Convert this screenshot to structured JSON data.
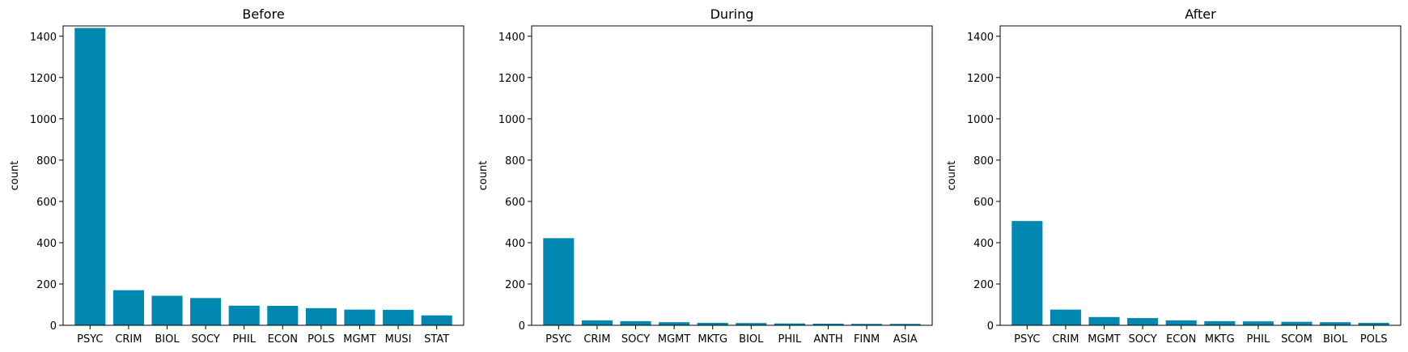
{
  "chart_data": [
    {
      "type": "bar",
      "title": "Before",
      "xlabel": "",
      "ylabel": "count",
      "ylim": [
        0,
        1450
      ],
      "yticks": [
        0,
        200,
        400,
        600,
        800,
        1000,
        1200,
        1400
      ],
      "grid": false,
      "categories": [
        "PSYC",
        "CRIM",
        "BIOL",
        "SOCY",
        "PHIL",
        "ECON",
        "POLS",
        "MGMT",
        "MUSI",
        "STAT"
      ],
      "values": [
        1440,
        170,
        143,
        132,
        95,
        94,
        83,
        76,
        75,
        48
      ],
      "color": "#0088b0"
    },
    {
      "type": "bar",
      "title": "During",
      "xlabel": "",
      "ylabel": "count",
      "ylim": [
        0,
        1450
      ],
      "yticks": [
        0,
        200,
        400,
        600,
        800,
        1000,
        1200,
        1400
      ],
      "grid": false,
      "categories": [
        "PSYC",
        "CRIM",
        "SOCY",
        "MGMT",
        "MKTG",
        "BIOL",
        "PHIL",
        "ANTH",
        "FINM",
        "ASIA"
      ],
      "values": [
        422,
        24,
        20,
        15,
        12,
        11,
        9,
        8,
        7,
        7
      ],
      "color": "#0088b0"
    },
    {
      "type": "bar",
      "title": "After",
      "xlabel": "",
      "ylabel": "count",
      "ylim": [
        0,
        1450
      ],
      "yticks": [
        0,
        200,
        400,
        600,
        800,
        1000,
        1200,
        1400
      ],
      "grid": false,
      "categories": [
        "PSYC",
        "CRIM",
        "MGMT",
        "SOCY",
        "ECON",
        "MKTG",
        "PHIL",
        "SCOM",
        "BIOL",
        "POLS"
      ],
      "values": [
        505,
        76,
        40,
        35,
        24,
        20,
        19,
        17,
        15,
        12
      ],
      "color": "#0088b0"
    }
  ]
}
